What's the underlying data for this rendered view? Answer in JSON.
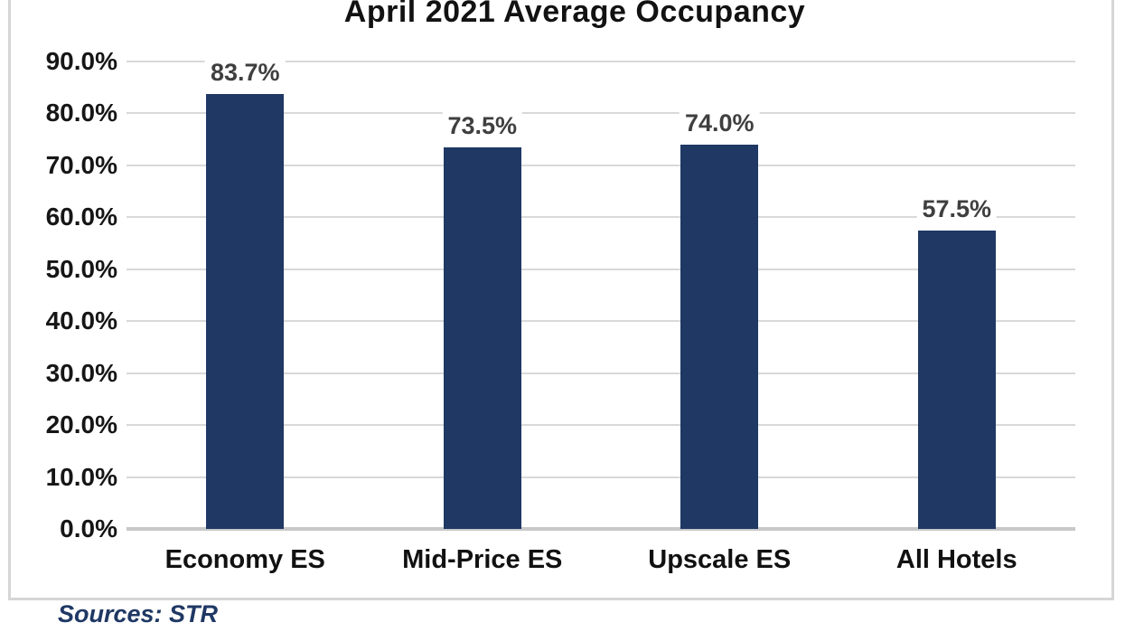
{
  "chart_data": {
    "type": "bar",
    "title": "April 2021 Average Occupancy",
    "categories": [
      "Economy ES",
      "Mid-Price ES",
      "Upscale ES",
      "All Hotels"
    ],
    "values": [
      83.7,
      73.5,
      74.0,
      57.5
    ],
    "value_labels": [
      "83.7%",
      "73.5%",
      "74.0%",
      "57.5%"
    ],
    "xlabel": "",
    "ylabel": "",
    "ylim": [
      0,
      90
    ],
    "ytick_step": 10,
    "ytick_labels": [
      "0.0%",
      "10.0%",
      "20.0%",
      "30.0%",
      "40.0%",
      "50.0%",
      "60.0%",
      "70.0%",
      "80.0%",
      "90.0%"
    ],
    "grid": true,
    "legend": "none",
    "colors": {
      "bar": "#1f3864",
      "value_label": "#3f3f3f",
      "gridline": "#d9d9d9",
      "axis_line": "#c8c8c8",
      "frame_border": "#d6d6d6",
      "title_text": "#121212",
      "axis_text": "#161616"
    }
  },
  "footer": {
    "source_note": "Sources: STR",
    "color": "#1f3864"
  }
}
